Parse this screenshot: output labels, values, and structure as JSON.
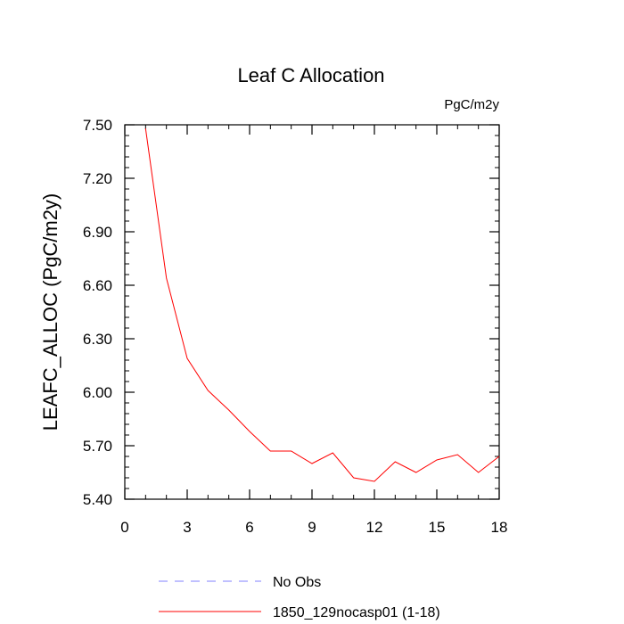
{
  "chart_data": {
    "type": "line",
    "title": "Leaf C Allocation",
    "units": "PgC/m2y",
    "xlabel": "",
    "ylabel": "LEAFC_ALLOC  (PgC/m2y)",
    "xlim": [
      0,
      18
    ],
    "ylim": [
      5.4,
      7.5
    ],
    "x_ticks": [
      0,
      3,
      6,
      9,
      12,
      15,
      18
    ],
    "x_tick_labels": [
      "0",
      "3",
      "6",
      "9",
      "12",
      "15",
      "18"
    ],
    "y_ticks": [
      5.4,
      5.7,
      6.0,
      6.3,
      6.6,
      6.9,
      7.2,
      7.5
    ],
    "y_tick_labels": [
      "5.40",
      "5.70",
      "6.00",
      "6.30",
      "6.60",
      "6.90",
      "7.20",
      "7.50"
    ],
    "grid": false,
    "legend_position": "bottom",
    "series": [
      {
        "name": "No Obs",
        "color": "#8080ff",
        "style": "dashed",
        "x": [],
        "y": []
      },
      {
        "name": "1850_129nocasp01 (1-18)",
        "color": "#ff0000",
        "style": "solid",
        "x": [
          1,
          2,
          3,
          4,
          5,
          6,
          7,
          8,
          9,
          10,
          11,
          12,
          13,
          14,
          15,
          16,
          17,
          18
        ],
        "y": [
          7.48,
          6.64,
          6.19,
          6.01,
          5.9,
          5.78,
          5.67,
          5.67,
          5.6,
          5.66,
          5.52,
          5.5,
          5.61,
          5.55,
          5.62,
          5.65,
          5.55,
          5.64
        ]
      }
    ]
  }
}
